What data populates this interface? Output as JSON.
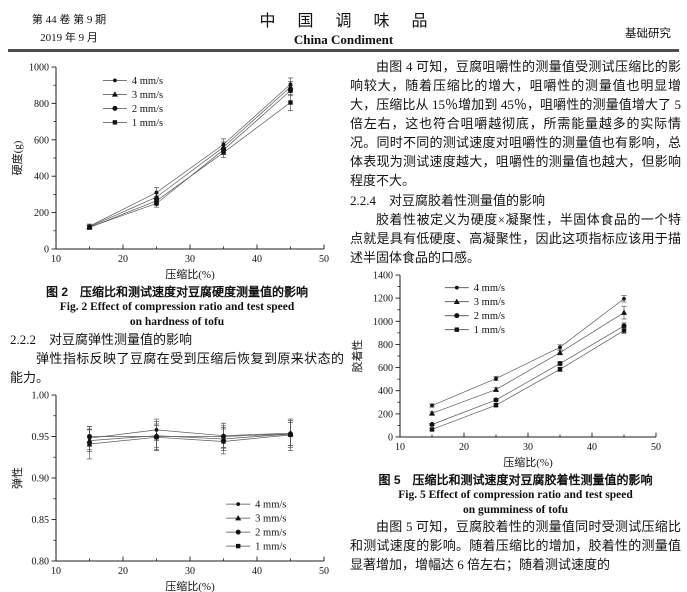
{
  "header": {
    "volume_issue": "第 44 卷 第 9 期",
    "date": "2019 年 9 月",
    "journal_cn": "中 国 调 味 品",
    "journal_en": "China Condiment",
    "column_label": "基础研究"
  },
  "left_column": {
    "fig2_caption_cn": "图 2　压缩比和测试速度对豆腐硬度测量值的影响",
    "fig2_caption_en_line1": "Fig. 2 Effect of compression ratio and test speed",
    "fig2_caption_en_line2": "on hardness of tofu",
    "section_2_2_2_heading": "2.2.2　对豆腐弹性测量值的影响",
    "section_2_2_2_text": "弹性指标反映了豆腐在受到压缩后恢复到原来状态的能力。"
  },
  "right_column": {
    "fig4_discussion": "由图 4 可知，豆腐咀嚼性的测量值受测试压缩比的影响较大，随着压缩比的增大，咀嚼性的测量值也明显增大，压缩比从 15％增加到 45％，咀嚼性的测量值增大了 5 倍左右，这也符合咀嚼越彻底，所需能量越多的实际情况。同时不同的测试速度对咀嚼性的测量值也有影响，总体表现为测试速度越大，咀嚼性的测量值也越大，但影响程度不大。",
    "section_2_2_4_heading": "2.2.4　对豆腐胶着性测量值的影响",
    "section_2_2_4_text": "胶着性被定义为硬度×凝聚性，半固体食品的一个特点就是具有低硬度、高凝聚性，因此这项指标应该用于描述半固体食品的口感。",
    "fig5_caption_cn": "图 5　压缩比和测试速度对豆腐胶着性测量值的影响",
    "fig5_caption_en_line1": "Fig. 5 Effect of compression ratio and test speed",
    "fig5_caption_en_line2": "on gumminess of tofu",
    "fig5_discussion": "由图 5 可知，豆腐胶着性的测量值同时受测试压缩比和测试速度的影响。随着压缩比的增加，胶着性的测量值显著增加，增幅达 6 倍左右；随着测试速度的"
  },
  "chart_data": [
    {
      "id": "fig2_hardness",
      "type": "line",
      "title": "",
      "xlabel": "压缩比(%)",
      "ylabel": "硬度(g)",
      "x": [
        15,
        25,
        35,
        45
      ],
      "series": [
        {
          "name": "4 mm/s",
          "marker": "dot",
          "values": [
            125,
            310,
            575,
            905
          ],
          "errors": [
            12,
            28,
            30,
            35
          ]
        },
        {
          "name": "3 mm/s",
          "marker": "triangle",
          "values": [
            122,
            285,
            560,
            890
          ],
          "errors": [
            10,
            22,
            28,
            30
          ]
        },
        {
          "name": "2 mm/s",
          "marker": "circle",
          "values": [
            120,
            250,
            545,
            870
          ],
          "errors": [
            10,
            20,
            25,
            28
          ]
        },
        {
          "name": "1 mm/s",
          "marker": "square",
          "values": [
            118,
            265,
            530,
            805
          ],
          "errors": [
            10,
            24,
            28,
            45
          ]
        }
      ],
      "xlim": [
        10,
        50
      ],
      "ylim": [
        0,
        1000
      ],
      "xticks": [
        10,
        20,
        30,
        40,
        50
      ],
      "yticks": [
        0,
        200,
        400,
        600,
        800,
        1000
      ],
      "grid": false,
      "legend_position": "top-left"
    },
    {
      "id": "elasticity",
      "type": "line",
      "title": "",
      "xlabel": "压缩比(%)",
      "ylabel": "弹性",
      "x": [
        15,
        25,
        35,
        45
      ],
      "series": [
        {
          "name": "4 mm/s",
          "marker": "dot",
          "values": [
            0.948,
            0.958,
            0.951,
            0.954
          ],
          "errors": [
            0.014,
            0.013,
            0.015,
            0.015
          ]
        },
        {
          "name": "3 mm/s",
          "marker": "triangle",
          "values": [
            0.945,
            0.951,
            0.947,
            0.953
          ],
          "errors": [
            0.013,
            0.017,
            0.014,
            0.014
          ]
        },
        {
          "name": "2 mm/s",
          "marker": "circle",
          "values": [
            0.95,
            0.95,
            0.95,
            0.953
          ],
          "errors": [
            0.012,
            0.013,
            0.013,
            0.016
          ]
        },
        {
          "name": "1 mm/s",
          "marker": "square",
          "values": [
            0.941,
            0.949,
            0.944,
            0.952
          ],
          "errors": [
            0.018,
            0.016,
            0.015,
            0.019
          ]
        }
      ],
      "xlim": [
        10,
        50
      ],
      "ylim": [
        0.8,
        1.0
      ],
      "xticks": [
        10,
        20,
        30,
        40,
        50
      ],
      "yticks": [
        0.8,
        0.85,
        0.9,
        0.95,
        1.0
      ],
      "ytick_labels": [
        "0.80",
        "0.85",
        "0.90",
        "0.95",
        "1.00"
      ],
      "grid": false,
      "legend_position": "bottom-right"
    },
    {
      "id": "fig5_gumminess",
      "type": "line",
      "title": "",
      "xlabel": "压缩比(%)",
      "ylabel": "胶着性",
      "x": [
        15,
        25,
        35,
        45
      ],
      "series": [
        {
          "name": "4 mm/s",
          "marker": "dot",
          "values": [
            272,
            505,
            775,
            1195
          ],
          "errors": [
            14,
            18,
            22,
            28
          ]
        },
        {
          "name": "3 mm/s",
          "marker": "triangle",
          "values": [
            205,
            410,
            730,
            1075
          ],
          "errors": [
            12,
            16,
            20,
            55
          ]
        },
        {
          "name": "2 mm/s",
          "marker": "circle",
          "values": [
            108,
            320,
            635,
            960
          ],
          "errors": [
            10,
            14,
            18,
            26
          ]
        },
        {
          "name": "1 mm/s",
          "marker": "square",
          "values": [
            65,
            275,
            585,
            920
          ],
          "errors": [
            10,
            14,
            18,
            24
          ]
        }
      ],
      "xlim": [
        10,
        50
      ],
      "ylim": [
        0,
        1400
      ],
      "xticks": [
        10,
        20,
        30,
        40,
        50
      ],
      "yticks": [
        0,
        200,
        400,
        600,
        800,
        1000,
        1200,
        1400
      ],
      "grid": false,
      "legend_position": "top-left"
    }
  ]
}
